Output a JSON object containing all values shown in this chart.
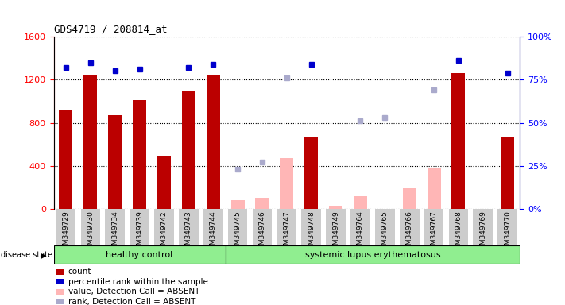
{
  "title": "GDS4719 / 208814_at",
  "samples": [
    "GSM349729",
    "GSM349730",
    "GSM349734",
    "GSM349739",
    "GSM349742",
    "GSM349743",
    "GSM349744",
    "GSM349745",
    "GSM349746",
    "GSM349747",
    "GSM349748",
    "GSM349749",
    "GSM349764",
    "GSM349765",
    "GSM349766",
    "GSM349767",
    "GSM349768",
    "GSM349769",
    "GSM349770"
  ],
  "n_healthy": 7,
  "n_lupus": 12,
  "count_values": [
    920,
    1240,
    870,
    1010,
    490,
    1100,
    1240,
    null,
    null,
    null,
    670,
    null,
    null,
    null,
    null,
    null,
    1260,
    null,
    670
  ],
  "percentile_values": [
    82,
    85,
    80,
    81,
    null,
    82,
    84,
    null,
    null,
    null,
    84,
    null,
    null,
    null,
    null,
    null,
    86,
    null,
    79
  ],
  "absent_value_values": [
    null,
    null,
    null,
    null,
    null,
    null,
    null,
    80,
    100,
    470,
    null,
    30,
    120,
    null,
    190,
    380,
    null,
    null,
    null
  ],
  "absent_rank_values": [
    null,
    null,
    null,
    null,
    null,
    null,
    null,
    23,
    27,
    76,
    null,
    null,
    51,
    53,
    null,
    69,
    null,
    null,
    null
  ],
  "ylim_left": [
    0,
    1600
  ],
  "ylim_right": [
    0,
    100
  ],
  "yticks_left": [
    0,
    400,
    800,
    1200,
    1600
  ],
  "yticks_right": [
    0,
    25,
    50,
    75,
    100
  ],
  "bar_color_present": "#BB0000",
  "bar_color_absent": "#FFB6B6",
  "dot_color_present": "#0000CC",
  "dot_color_absent": "#AAAACC",
  "group_color": "#90EE90",
  "ticklabel_bg": "#CCCCCC",
  "legend_items": [
    {
      "label": "count",
      "color": "#BB0000"
    },
    {
      "label": "percentile rank within the sample",
      "color": "#0000CC"
    },
    {
      "label": "value, Detection Call = ABSENT",
      "color": "#FFB6B6"
    },
    {
      "label": "rank, Detection Call = ABSENT",
      "color": "#AAAACC"
    }
  ]
}
